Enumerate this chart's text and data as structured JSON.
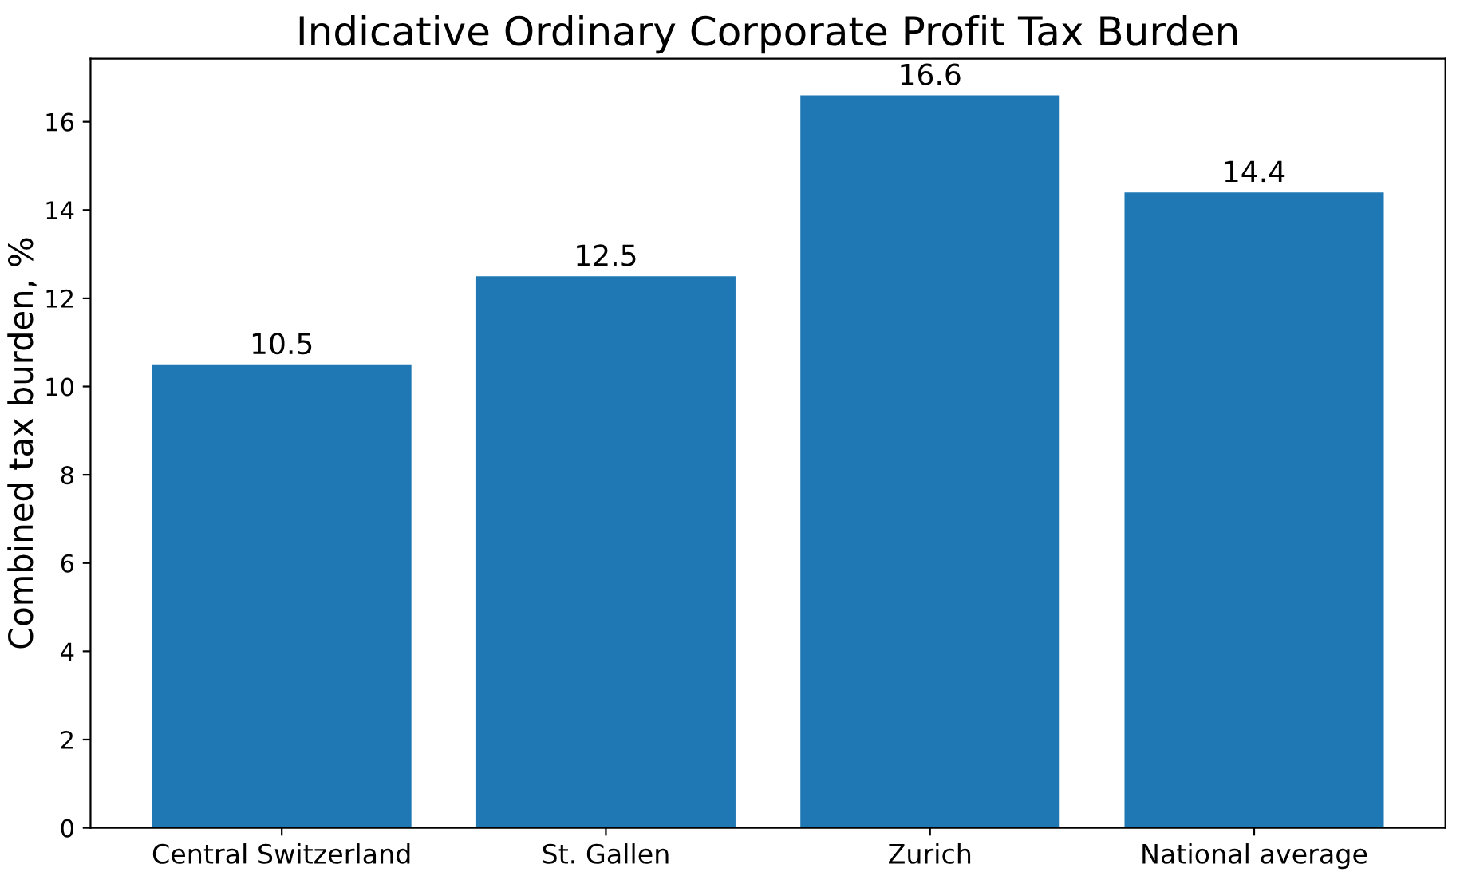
{
  "chart_data": {
    "type": "bar",
    "title": "Indicative Ordinary Corporate Profit Tax Burden",
    "ylabel": "Combined tax burden, %",
    "categories": [
      "Central Switzerland",
      "St. Gallen",
      "Zurich",
      "National average"
    ],
    "values": [
      10.5,
      12.5,
      16.6,
      14.4
    ],
    "color": "#1f77b4",
    "ylim": [
      0,
      17.43
    ],
    "yticks": [
      0,
      2,
      4,
      6,
      8,
      10,
      12,
      14,
      16
    ],
    "data_labels": true,
    "grid": false,
    "legend": false
  }
}
